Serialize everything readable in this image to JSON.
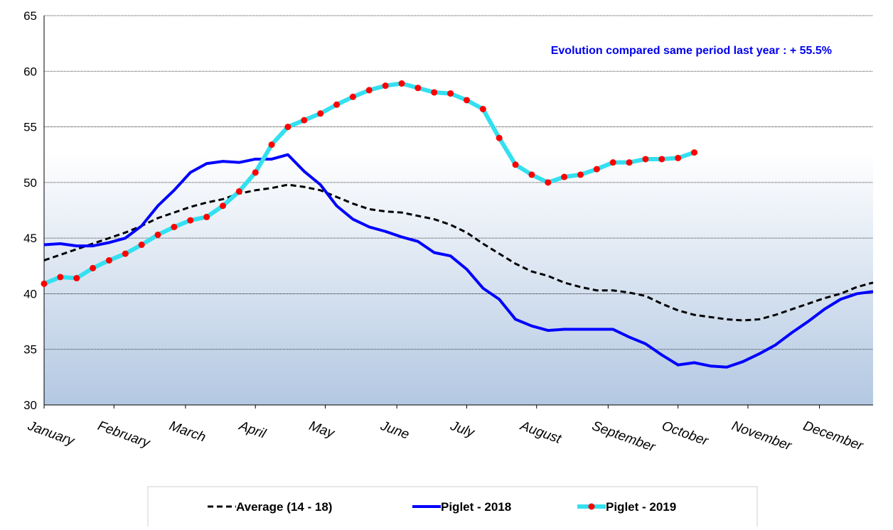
{
  "chart_data": {
    "type": "line",
    "annotation": "Evolution compared same period last year   : + 55.5%",
    "x": [
      1,
      2,
      3,
      4,
      5,
      6,
      7,
      8,
      9,
      10,
      11,
      12,
      13,
      14,
      15,
      16,
      17,
      18,
      19,
      20,
      21,
      22,
      23,
      24,
      25,
      26,
      27,
      28,
      29,
      30,
      31,
      32,
      33,
      34,
      35,
      36,
      37,
      38,
      39,
      40,
      41,
      42,
      43,
      44,
      45,
      46,
      47,
      48,
      49,
      50,
      51,
      52
    ],
    "xlim": [
      1,
      52
    ],
    "xticks": [
      {
        "value": 1,
        "label": "January"
      },
      {
        "value": 5.3,
        "label": "February"
      },
      {
        "value": 9.7,
        "label": "March"
      },
      {
        "value": 14,
        "label": "April"
      },
      {
        "value": 18.3,
        "label": "May"
      },
      {
        "value": 22.7,
        "label": "June"
      },
      {
        "value": 27,
        "label": "July"
      },
      {
        "value": 31.3,
        "label": "August"
      },
      {
        "value": 35.7,
        "label": "September"
      },
      {
        "value": 40,
        "label": "October"
      },
      {
        "value": 44.3,
        "label": "November"
      },
      {
        "value": 48.7,
        "label": "December"
      }
    ],
    "ylim": [
      30,
      65
    ],
    "yticks": [
      30,
      35,
      40,
      45,
      50,
      55,
      60,
      65
    ],
    "grid": true,
    "legend": "bottom",
    "series": [
      {
        "name": "Average (14 - 18)",
        "color": "#000000",
        "dash": "dashed",
        "values": [
          43.0,
          43.5,
          44.0,
          44.5,
          45.0,
          45.5,
          46.1,
          46.8,
          47.3,
          47.8,
          48.2,
          48.5,
          49.0,
          49.3,
          49.5,
          49.8,
          49.6,
          49.3,
          48.7,
          48.1,
          47.6,
          47.4,
          47.3,
          47.0,
          46.7,
          46.2,
          45.5,
          44.5,
          43.6,
          42.7,
          42.0,
          41.6,
          41.0,
          40.6,
          40.3,
          40.3,
          40.1,
          39.8,
          39.1,
          38.5,
          38.1,
          37.9,
          37.7,
          37.6,
          37.7,
          38.1,
          38.6,
          39.1,
          39.6,
          40.0,
          40.6,
          41.0
        ]
      },
      {
        "name": "Piglet - 2018",
        "color": "#0000ff",
        "values": [
          44.4,
          44.5,
          44.3,
          44.3,
          44.6,
          45.0,
          46.1,
          47.9,
          49.3,
          50.9,
          51.7,
          51.9,
          51.8,
          52.1,
          52.1,
          52.5,
          51.0,
          49.8,
          47.9,
          46.7,
          46.0,
          45.6,
          45.1,
          44.7,
          43.7,
          43.4,
          42.2,
          40.5,
          39.5,
          37.7,
          37.1,
          36.7,
          36.8,
          36.8,
          36.8,
          36.8,
          36.1,
          35.5,
          34.5,
          33.6,
          33.8,
          33.5,
          33.4,
          33.9,
          34.6,
          35.4,
          36.5,
          37.5,
          38.6,
          39.5,
          40.0,
          40.2
        ]
      },
      {
        "name": "Piglet - 2019",
        "color": "#33e0f0",
        "marker_color": "#ff0000",
        "values": [
          40.9,
          41.5,
          41.4,
          42.3,
          43.0,
          43.6,
          44.4,
          45.3,
          46.0,
          46.6,
          46.9,
          47.9,
          49.2,
          50.9,
          53.4,
          55.0,
          55.6,
          56.2,
          57.0,
          57.7,
          58.3,
          58.7,
          58.9,
          58.5,
          58.1,
          58.0,
          57.4,
          56.6,
          54.0,
          51.6,
          50.7,
          50.0,
          50.5,
          50.7,
          51.2,
          51.8,
          51.8,
          52.1,
          52.1,
          52.2,
          52.7,
          null,
          null,
          null,
          null,
          null,
          null,
          null,
          null,
          null,
          null,
          null
        ]
      }
    ]
  }
}
